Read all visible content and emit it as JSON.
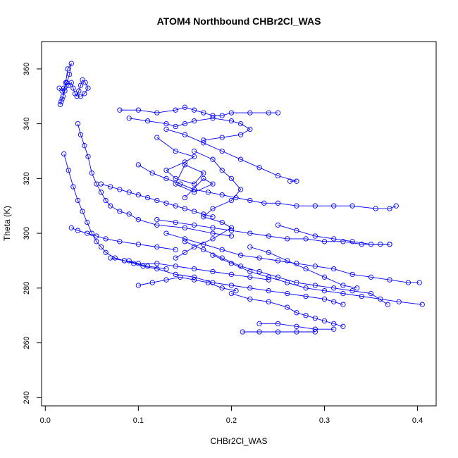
{
  "chart_data": {
    "type": "line",
    "title": "ATOM4 Northbound CHBr2Cl_WAS",
    "xlabel": "CHBr2Cl_WAS",
    "ylabel": "Theta (K)",
    "xlim": [
      -0.004,
      0.42
    ],
    "ylim": [
      237,
      370
    ],
    "x_ticks": [
      "0.0",
      "0.1",
      "0.2",
      "0.3",
      "0.4"
    ],
    "y_ticks": [
      "240",
      "260",
      "280",
      "300",
      "320",
      "340",
      "360"
    ],
    "grid": false,
    "legend": "none",
    "marker": "open-circle",
    "colors": {
      "series": "#0000ff",
      "axes": "#000000",
      "background": "#ffffff"
    },
    "series": [
      {
        "x": [
          0.015,
          0.018,
          0.02,
          0.023,
          0.026,
          0.028,
          0.024,
          0.022,
          0.019,
          0.017,
          0.016,
          0.018,
          0.021,
          0.025,
          0.028,
          0.03,
          0.032,
          0.034,
          0.036,
          0.038,
          0.04,
          0.043,
          0.046,
          0.042,
          0.038
        ],
        "y": [
          353,
          352,
          353,
          355,
          358,
          362,
          360,
          355,
          350,
          348,
          347,
          349,
          352,
          354,
          355,
          353,
          351,
          350,
          352,
          354,
          356,
          355,
          353,
          351,
          350
        ]
      },
      {
        "x": [
          0.035,
          0.038,
          0.042,
          0.046,
          0.05,
          0.055,
          0.06,
          0.065,
          0.07,
          0.08,
          0.09,
          0.1,
          0.12,
          0.15,
          0.18,
          0.2
        ],
        "y": [
          340,
          336,
          332,
          328,
          322,
          318,
          315,
          312,
          310,
          308,
          307,
          305,
          303,
          302,
          300,
          299
        ]
      },
      {
        "x": [
          0.02,
          0.025,
          0.03,
          0.035,
          0.04,
          0.045,
          0.05,
          0.055,
          0.06,
          0.065,
          0.075,
          0.085,
          0.095,
          0.11,
          0.13
        ],
        "y": [
          329,
          323,
          317,
          312,
          308,
          304,
          300,
          297,
          295,
          293,
          291,
          290,
          289,
          288,
          287
        ]
      },
      {
        "x": [
          0.08,
          0.1,
          0.12,
          0.14,
          0.15,
          0.16,
          0.17,
          0.18,
          0.19,
          0.2,
          0.22,
          0.24,
          0.25
        ],
        "y": [
          345,
          345,
          344,
          345,
          346,
          345,
          344,
          343,
          343,
          344,
          344,
          344,
          344
        ]
      },
      {
        "x": [
          0.09,
          0.11,
          0.13,
          0.14,
          0.15,
          0.16,
          0.18,
          0.2,
          0.21,
          0.22,
          0.21,
          0.19,
          0.17
        ],
        "y": [
          342,
          341,
          340,
          339,
          340,
          341,
          342,
          341,
          340,
          338,
          336,
          335,
          334
        ]
      },
      {
        "x": [
          0.1,
          0.115,
          0.13,
          0.145,
          0.16,
          0.175,
          0.19,
          0.205,
          0.22,
          0.235,
          0.25,
          0.27,
          0.29,
          0.31,
          0.33,
          0.355,
          0.37,
          0.377
        ],
        "y": [
          325,
          322,
          320,
          318,
          316,
          315,
          314,
          313,
          312,
          311,
          311,
          310,
          310,
          310,
          310,
          309,
          309,
          310
        ]
      },
      {
        "x": [
          0.12,
          0.14,
          0.16,
          0.18,
          0.2,
          0.22,
          0.24,
          0.26,
          0.28,
          0.3,
          0.32,
          0.34,
          0.36,
          0.37
        ],
        "y": [
          305,
          304,
          303,
          302,
          301,
          300,
          299,
          298,
          298,
          297,
          297,
          296,
          296,
          296
        ]
      },
      {
        "x": [
          0.13,
          0.15,
          0.17,
          0.19,
          0.21,
          0.23,
          0.25,
          0.27,
          0.29,
          0.31,
          0.33,
          0.35,
          0.37,
          0.39,
          0.402
        ],
        "y": [
          300,
          298,
          296,
          294,
          292,
          291,
          290,
          289,
          288,
          287,
          285,
          284,
          283,
          282,
          282
        ]
      },
      {
        "x": [
          0.15,
          0.17,
          0.19,
          0.21,
          0.23,
          0.25,
          0.27,
          0.29,
          0.31,
          0.33,
          0.35,
          0.368
        ],
        "y": [
          297,
          294,
          291,
          288,
          286,
          284,
          282,
          281,
          280,
          279,
          278,
          274
        ]
      },
      {
        "x": [
          0.18,
          0.2,
          0.22,
          0.24,
          0.26,
          0.28,
          0.3,
          0.32,
          0.34,
          0.36,
          0.38,
          0.405
        ],
        "y": [
          292,
          289,
          286,
          284,
          282,
          280,
          279,
          278,
          277,
          276,
          275,
          274
        ]
      },
      {
        "x": [
          0.09,
          0.105,
          0.12,
          0.14,
          0.16,
          0.18,
          0.2,
          0.22,
          0.24,
          0.26,
          0.28,
          0.3,
          0.31,
          0.32
        ],
        "y": [
          290,
          288,
          287,
          285,
          284,
          282,
          281,
          280,
          279,
          278,
          277,
          276,
          275,
          274
        ]
      },
      {
        "x": [
          0.2,
          0.22,
          0.24,
          0.26,
          0.27,
          0.28,
          0.29,
          0.3,
          0.31,
          0.32
        ],
        "y": [
          278,
          276,
          275,
          273,
          271,
          270,
          269,
          268,
          267,
          266
        ]
      },
      {
        "x": [
          0.212,
          0.23,
          0.25,
          0.27,
          0.29
        ],
        "y": [
          264,
          264,
          264,
          264,
          264
        ]
      },
      {
        "x": [
          0.23,
          0.25,
          0.27,
          0.29,
          0.31
        ],
        "y": [
          267,
          267,
          266,
          265,
          265
        ]
      },
      {
        "x": [
          0.12,
          0.14,
          0.16,
          0.15,
          0.13,
          0.14,
          0.16,
          0.17,
          0.15,
          0.14,
          0.16,
          0.18,
          0.17,
          0.15
        ],
        "y": [
          335,
          330,
          328,
          326,
          323,
          320,
          318,
          322,
          325,
          318,
          315,
          318,
          320,
          313
        ]
      },
      {
        "x": [
          0.13,
          0.15,
          0.17,
          0.19,
          0.21,
          0.23,
          0.25,
          0.27,
          0.263
        ],
        "y": [
          338,
          336,
          333,
          330,
          327,
          324,
          321,
          319,
          319
        ]
      },
      {
        "x": [
          0.16,
          0.18,
          0.19,
          0.2,
          0.21,
          0.2,
          0.18,
          0.17,
          0.19,
          0.2,
          0.18,
          0.16,
          0.15,
          0.14
        ],
        "y": [
          330,
          327,
          323,
          320,
          316,
          312,
          309,
          306,
          304,
          302,
          298,
          295,
          293,
          291
        ]
      },
      {
        "x": [
          0.06,
          0.07,
          0.08,
          0.09,
          0.1,
          0.11,
          0.12,
          0.13,
          0.14,
          0.15,
          0.16,
          0.17,
          0.18
        ],
        "y": [
          318,
          317,
          316,
          315,
          314,
          313,
          312,
          311,
          310,
          309,
          308,
          307,
          306
        ]
      },
      {
        "x": [
          0.028,
          0.035,
          0.045,
          0.055,
          0.065,
          0.08,
          0.1,
          0.12,
          0.14
        ],
        "y": [
          302,
          301,
          300,
          299,
          298,
          297,
          296,
          295,
          294
        ]
      },
      {
        "x": [
          0.07,
          0.085,
          0.1,
          0.12,
          0.14,
          0.16,
          0.18,
          0.2,
          0.22,
          0.24
        ],
        "y": [
          291,
          290,
          289,
          289,
          288,
          287,
          286,
          285,
          284,
          283
        ]
      },
      {
        "x": [
          0.1,
          0.115,
          0.13,
          0.145,
          0.16,
          0.175,
          0.19,
          0.205
        ],
        "y": [
          281,
          282,
          283,
          284,
          283,
          282,
          280,
          279
        ]
      },
      {
        "x": [
          0.22,
          0.24,
          0.26,
          0.28,
          0.3,
          0.32,
          0.335
        ],
        "y": [
          295,
          293,
          290,
          287,
          284,
          281,
          280
        ]
      },
      {
        "x": [
          0.25,
          0.27,
          0.29,
          0.31,
          0.33,
          0.35,
          0.37
        ],
        "y": [
          303,
          301,
          299,
          298,
          297,
          296,
          296
        ]
      }
    ]
  }
}
